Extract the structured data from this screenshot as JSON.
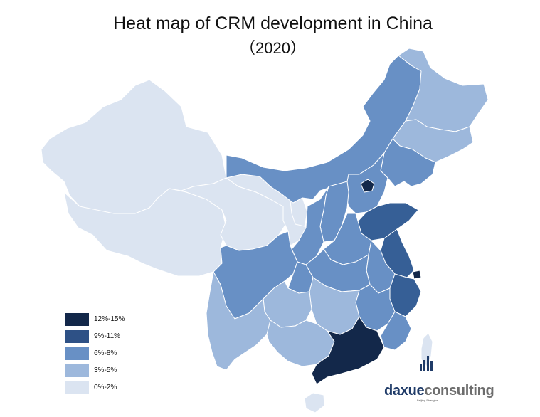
{
  "title": "Heat map of CRM development in China",
  "subtitle": "（2020）",
  "colors": {
    "level_12_15": "#13284a",
    "level_9_11": "#365f96",
    "level_6_8": "#6890c5",
    "level_3_5": "#9db8dc",
    "level_0_2": "#dbe4f1",
    "border": "#ffffff"
  },
  "legend": [
    {
      "label": "12%-15%",
      "color": "#13284a"
    },
    {
      "label": "9%-11%",
      "color": "#2e5186"
    },
    {
      "label": "6%-8%",
      "color": "#6890c5"
    },
    {
      "label": "3%-5%",
      "color": "#9db8dc"
    },
    {
      "label": "0%-2%",
      "color": "#dbe4f1"
    }
  ],
  "brand": {
    "lead": "daxue",
    "rest": "consulting",
    "sub": "Beijing Shanghai"
  }
}
